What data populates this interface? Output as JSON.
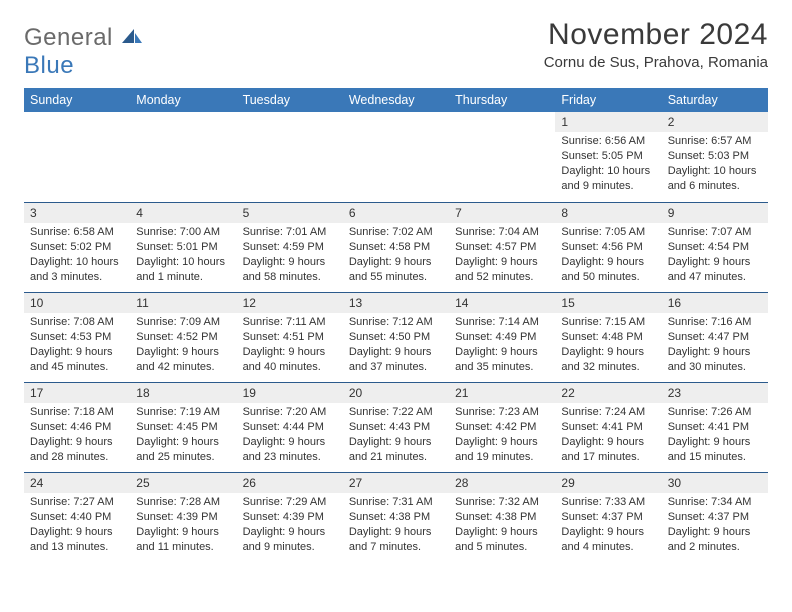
{
  "brand": {
    "general": "General",
    "blue": "Blue"
  },
  "title": "November 2024",
  "location": "Cornu de Sus, Prahova, Romania",
  "colors": {
    "header_bg": "#3a78b8",
    "header_fg": "#ffffff",
    "daynum_bg": "#eeeeee",
    "text": "#333333",
    "rule": "#2b5a8c"
  },
  "weekdays": [
    "Sunday",
    "Monday",
    "Tuesday",
    "Wednesday",
    "Thursday",
    "Friday",
    "Saturday"
  ],
  "weeks": [
    [
      null,
      null,
      null,
      null,
      null,
      {
        "n": "1",
        "sr": "Sunrise: 6:56 AM",
        "ss": "Sunset: 5:05 PM",
        "dl": "Daylight: 10 hours and 9 minutes."
      },
      {
        "n": "2",
        "sr": "Sunrise: 6:57 AM",
        "ss": "Sunset: 5:03 PM",
        "dl": "Daylight: 10 hours and 6 minutes."
      }
    ],
    [
      {
        "n": "3",
        "sr": "Sunrise: 6:58 AM",
        "ss": "Sunset: 5:02 PM",
        "dl": "Daylight: 10 hours and 3 minutes."
      },
      {
        "n": "4",
        "sr": "Sunrise: 7:00 AM",
        "ss": "Sunset: 5:01 PM",
        "dl": "Daylight: 10 hours and 1 minute."
      },
      {
        "n": "5",
        "sr": "Sunrise: 7:01 AM",
        "ss": "Sunset: 4:59 PM",
        "dl": "Daylight: 9 hours and 58 minutes."
      },
      {
        "n": "6",
        "sr": "Sunrise: 7:02 AM",
        "ss": "Sunset: 4:58 PM",
        "dl": "Daylight: 9 hours and 55 minutes."
      },
      {
        "n": "7",
        "sr": "Sunrise: 7:04 AM",
        "ss": "Sunset: 4:57 PM",
        "dl": "Daylight: 9 hours and 52 minutes."
      },
      {
        "n": "8",
        "sr": "Sunrise: 7:05 AM",
        "ss": "Sunset: 4:56 PM",
        "dl": "Daylight: 9 hours and 50 minutes."
      },
      {
        "n": "9",
        "sr": "Sunrise: 7:07 AM",
        "ss": "Sunset: 4:54 PM",
        "dl": "Daylight: 9 hours and 47 minutes."
      }
    ],
    [
      {
        "n": "10",
        "sr": "Sunrise: 7:08 AM",
        "ss": "Sunset: 4:53 PM",
        "dl": "Daylight: 9 hours and 45 minutes."
      },
      {
        "n": "11",
        "sr": "Sunrise: 7:09 AM",
        "ss": "Sunset: 4:52 PM",
        "dl": "Daylight: 9 hours and 42 minutes."
      },
      {
        "n": "12",
        "sr": "Sunrise: 7:11 AM",
        "ss": "Sunset: 4:51 PM",
        "dl": "Daylight: 9 hours and 40 minutes."
      },
      {
        "n": "13",
        "sr": "Sunrise: 7:12 AM",
        "ss": "Sunset: 4:50 PM",
        "dl": "Daylight: 9 hours and 37 minutes."
      },
      {
        "n": "14",
        "sr": "Sunrise: 7:14 AM",
        "ss": "Sunset: 4:49 PM",
        "dl": "Daylight: 9 hours and 35 minutes."
      },
      {
        "n": "15",
        "sr": "Sunrise: 7:15 AM",
        "ss": "Sunset: 4:48 PM",
        "dl": "Daylight: 9 hours and 32 minutes."
      },
      {
        "n": "16",
        "sr": "Sunrise: 7:16 AM",
        "ss": "Sunset: 4:47 PM",
        "dl": "Daylight: 9 hours and 30 minutes."
      }
    ],
    [
      {
        "n": "17",
        "sr": "Sunrise: 7:18 AM",
        "ss": "Sunset: 4:46 PM",
        "dl": "Daylight: 9 hours and 28 minutes."
      },
      {
        "n": "18",
        "sr": "Sunrise: 7:19 AM",
        "ss": "Sunset: 4:45 PM",
        "dl": "Daylight: 9 hours and 25 minutes."
      },
      {
        "n": "19",
        "sr": "Sunrise: 7:20 AM",
        "ss": "Sunset: 4:44 PM",
        "dl": "Daylight: 9 hours and 23 minutes."
      },
      {
        "n": "20",
        "sr": "Sunrise: 7:22 AM",
        "ss": "Sunset: 4:43 PM",
        "dl": "Daylight: 9 hours and 21 minutes."
      },
      {
        "n": "21",
        "sr": "Sunrise: 7:23 AM",
        "ss": "Sunset: 4:42 PM",
        "dl": "Daylight: 9 hours and 19 minutes."
      },
      {
        "n": "22",
        "sr": "Sunrise: 7:24 AM",
        "ss": "Sunset: 4:41 PM",
        "dl": "Daylight: 9 hours and 17 minutes."
      },
      {
        "n": "23",
        "sr": "Sunrise: 7:26 AM",
        "ss": "Sunset: 4:41 PM",
        "dl": "Daylight: 9 hours and 15 minutes."
      }
    ],
    [
      {
        "n": "24",
        "sr": "Sunrise: 7:27 AM",
        "ss": "Sunset: 4:40 PM",
        "dl": "Daylight: 9 hours and 13 minutes."
      },
      {
        "n": "25",
        "sr": "Sunrise: 7:28 AM",
        "ss": "Sunset: 4:39 PM",
        "dl": "Daylight: 9 hours and 11 minutes."
      },
      {
        "n": "26",
        "sr": "Sunrise: 7:29 AM",
        "ss": "Sunset: 4:39 PM",
        "dl": "Daylight: 9 hours and 9 minutes."
      },
      {
        "n": "27",
        "sr": "Sunrise: 7:31 AM",
        "ss": "Sunset: 4:38 PM",
        "dl": "Daylight: 9 hours and 7 minutes."
      },
      {
        "n": "28",
        "sr": "Sunrise: 7:32 AM",
        "ss": "Sunset: 4:38 PM",
        "dl": "Daylight: 9 hours and 5 minutes."
      },
      {
        "n": "29",
        "sr": "Sunrise: 7:33 AM",
        "ss": "Sunset: 4:37 PM",
        "dl": "Daylight: 9 hours and 4 minutes."
      },
      {
        "n": "30",
        "sr": "Sunrise: 7:34 AM",
        "ss": "Sunset: 4:37 PM",
        "dl": "Daylight: 9 hours and 2 minutes."
      }
    ]
  ]
}
